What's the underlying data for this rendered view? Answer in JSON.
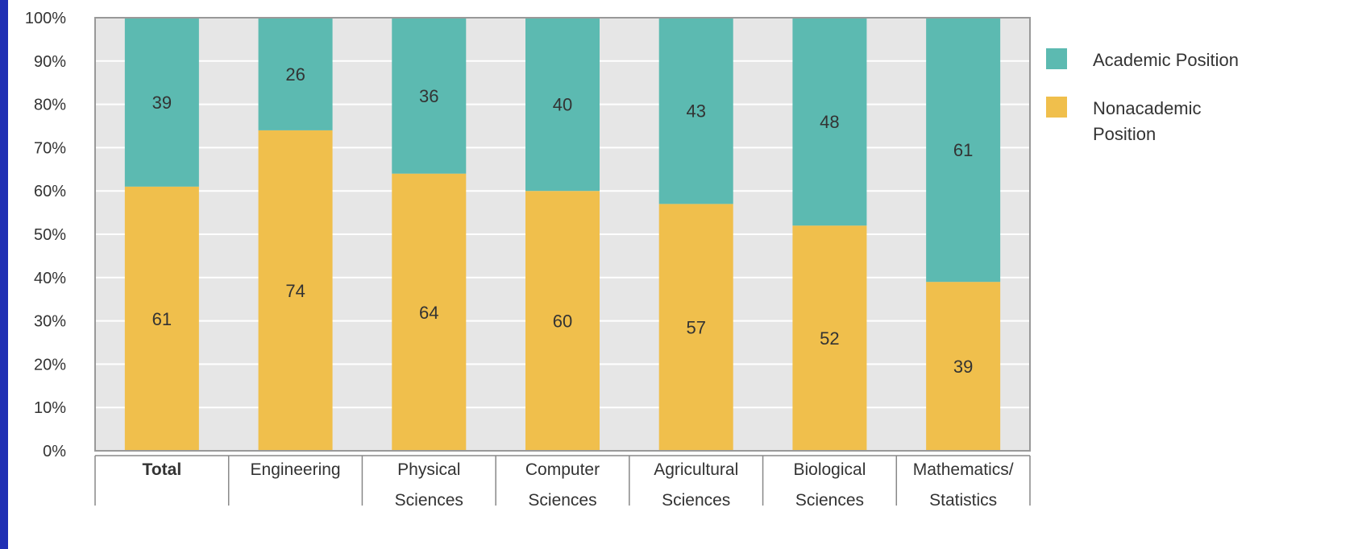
{
  "chart_data": {
    "type": "bar",
    "stacked": true,
    "categories": [
      [
        "Total"
      ],
      [
        "Engineering"
      ],
      [
        "Physical",
        "Sciences"
      ],
      [
        "Computer",
        "Sciences"
      ],
      [
        "Agricultural",
        "Sciences"
      ],
      [
        "Biological",
        "Sciences"
      ],
      [
        "Mathematics/",
        "Statistics"
      ]
    ],
    "bold_categories": [
      0
    ],
    "series": [
      {
        "name": "Nonacademic Position",
        "legend_lines": [
          "Nonacademic",
          "Position"
        ],
        "color": "#f0bf4c",
        "values": [
          61,
          74,
          64,
          60,
          57,
          52,
          39
        ]
      },
      {
        "name": "Academic Position",
        "legend_lines": [
          "Academic Position"
        ],
        "color": "#5cbab1",
        "values": [
          39,
          26,
          36,
          40,
          43,
          48,
          61
        ]
      }
    ],
    "legend_order": [
      1,
      0
    ],
    "y_ticks": [
      "0%",
      "10%",
      "20%",
      "30%",
      "40%",
      "50%",
      "60%",
      "70%",
      "80%",
      "90%",
      "100%"
    ],
    "ylim": [
      0,
      100
    ],
    "grid": true,
    "legend_position": "right",
    "plot_background": "#e6e6e6",
    "grid_color": "#ffffff"
  }
}
